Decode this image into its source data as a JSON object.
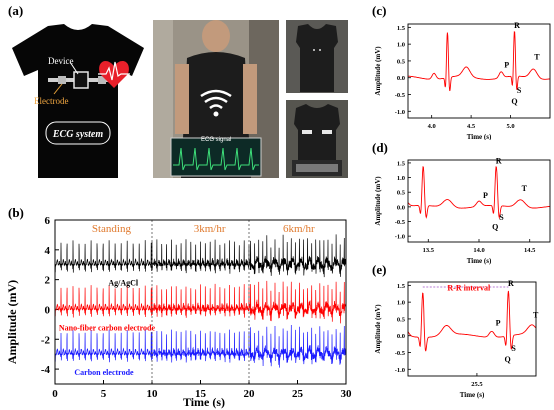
{
  "panels": {
    "a": "(a)",
    "b": "(b)",
    "c": "(c)",
    "d": "(d)",
    "e": "(e)"
  },
  "shirt": {
    "device": "Device",
    "electrode": "Electrode",
    "system": "ECG system",
    "heart_color": "#e8202a"
  },
  "photo": {
    "ecg_signal": "ECG signal"
  },
  "panel_b": {
    "ylabel": "Amplitude (mV)",
    "xlabel": "Time (s)",
    "segments": [
      "Standing",
      "3km/hr",
      "6km/hr"
    ],
    "series": [
      {
        "name": "Ag/AgCl",
        "color": "#000000",
        "baseline": 3
      },
      {
        "name": "Nano-fiber carbon electrode",
        "color": "#ff0000",
        "baseline": 0
      },
      {
        "name": "Carbon electrode",
        "color": "#1a1aff",
        "baseline": -3
      }
    ],
    "segment_label_color": "#e07a2e"
  },
  "chart_data": [
    {
      "type": "line",
      "title": "",
      "xlabel": "Time (s)",
      "ylabel": "Amplitude (mV)",
      "xlim": [
        0,
        30
      ],
      "ylim": [
        -5,
        6
      ],
      "xticks": [
        0,
        5,
        10,
        15,
        20,
        25,
        30
      ],
      "yticks": [
        -4,
        -2,
        0,
        2,
        4,
        6
      ],
      "vlines": [
        10,
        20
      ],
      "annotations": [
        "Standing",
        "3km/hr",
        "6km/hr"
      ],
      "series": [
        {
          "name": "Ag/AgCl",
          "baseline": 3,
          "amplitude": 1.8
        },
        {
          "name": "Nano-fiber carbon electrode",
          "baseline": 0,
          "amplitude": 1.8
        },
        {
          "name": "Carbon electrode",
          "baseline": -3,
          "amplitude": 1.8
        }
      ]
    },
    {
      "type": "line",
      "xlabel": "Time (s)",
      "ylabel": "Amplitude (mV)",
      "xlim": [
        3.7,
        5.5
      ],
      "ylim": [
        -1.2,
        1.6
      ],
      "xticks": [
        4.0,
        4.5,
        5.0,
        5.5
      ],
      "xtick_labels": [
        "4.0",
        "4.5",
        "5.0",
        ""
      ],
      "yticks": [
        -1.0,
        -0.5,
        0.0,
        0.5,
        1.0,
        1.5
      ],
      "beats": [
        4.2,
        5.05
      ],
      "annotations": [
        "R",
        "P",
        "Q",
        "S",
        "T"
      ]
    },
    {
      "type": "line",
      "xlabel": "Time (s)",
      "ylabel": "Amplitude (mV)",
      "xlim": [
        13.3,
        14.7
      ],
      "ylim": [
        -1.2,
        1.6
      ],
      "xticks": [
        13.5,
        14.0,
        14.5
      ],
      "yticks": [
        -1.0,
        -0.5,
        0.0,
        0.5,
        1.0,
        1.5
      ],
      "beats": [
        13.45,
        14.17
      ],
      "annotations": [
        "R",
        "P",
        "Q",
        "S",
        "T"
      ]
    },
    {
      "type": "line",
      "xlabel": "Time (s)",
      "ylabel": "Amplitude (mV)",
      "xlim": [
        24.8,
        26.1
      ],
      "ylim": [
        -1.2,
        1.6
      ],
      "xticks": [
        25.5
      ],
      "yticks": [
        -1.0,
        -0.5,
        0.0,
        0.5,
        1.0,
        1.5
      ],
      "beats": [
        24.95,
        25.82
      ],
      "annotations": [
        "R-R interval",
        "R",
        "P",
        "Q",
        "S",
        "T"
      ]
    }
  ],
  "axis_ticks": {
    "b_x": [
      "0",
      "5",
      "10",
      "15",
      "20",
      "25",
      "30"
    ],
    "b_y": [
      "-4",
      "-2",
      "0",
      "2",
      "4",
      "6"
    ],
    "small_y": [
      "1.5",
      "1.0",
      "0.5",
      "0.0",
      "-0.5",
      "-1.0"
    ],
    "c_x": [
      "4.0",
      "4.5",
      "5.0"
    ],
    "d_x": [
      "13.5",
      "14.0",
      "14.5"
    ],
    "e_x": [
      "25.5"
    ]
  },
  "small_labels": {
    "ylabel": "Amplitude (mV)",
    "xlabel": "Time (s)",
    "rr": "R-R interval",
    "R": "R",
    "P": "P",
    "Q": "Q",
    "S": "S",
    "T": "T"
  }
}
